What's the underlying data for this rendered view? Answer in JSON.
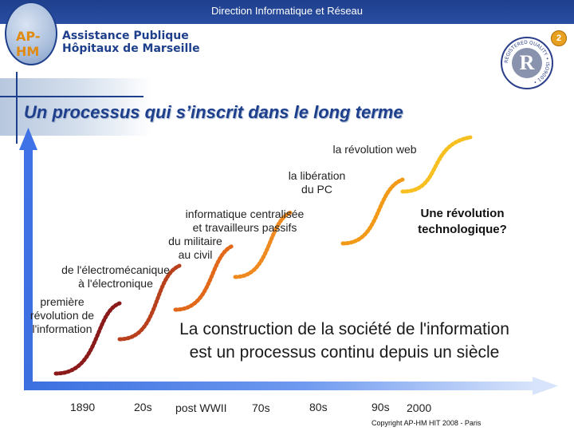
{
  "header": {
    "title": "Direction Informatique et Réseau",
    "page_number": "2"
  },
  "logo": {
    "mark": "AP-HM",
    "org_line1": "Assistance Publique",
    "org_line2": "Hôpitaux de Marseille"
  },
  "certification": {
    "mark": "R",
    "ring_text": "REGISTERED QUALITY • ISO9001 •"
  },
  "slide": {
    "title": "Un processus qui s’inscrit dans le long terme"
  },
  "stages": [
    {
      "label_lines": [
        "première",
        "révolution de",
        "l'information"
      ]
    },
    {
      "label_lines": [
        "de l'électromécanique",
        "à l'électronique"
      ]
    },
    {
      "label_lines": [
        "du militaire",
        "au civil"
      ]
    },
    {
      "label_lines": [
        "informatique centralisée",
        "et travailleurs passifs"
      ]
    },
    {
      "label_lines": [
        "la libération",
        "du PC"
      ]
    },
    {
      "label_lines": [
        "la révolution web"
      ]
    }
  ],
  "stage_colors": [
    "#8b1a1a",
    "#b8401c",
    "#e2681a",
    "#ef8a20",
    "#f29a18",
    "#f7c020"
  ],
  "question_lines": [
    "Une révolution",
    "technologique?"
  ],
  "statement_lines": [
    "La construction de la société de l'information",
    "est un processus continu depuis un siècle"
  ],
  "timeline": {
    "labels": [
      "1890",
      "20s",
      "post WWII",
      "70s",
      "80s",
      "90s",
      "2000"
    ]
  },
  "copyright": "Copyright AP-HM   HIT 2008 - Paris"
}
